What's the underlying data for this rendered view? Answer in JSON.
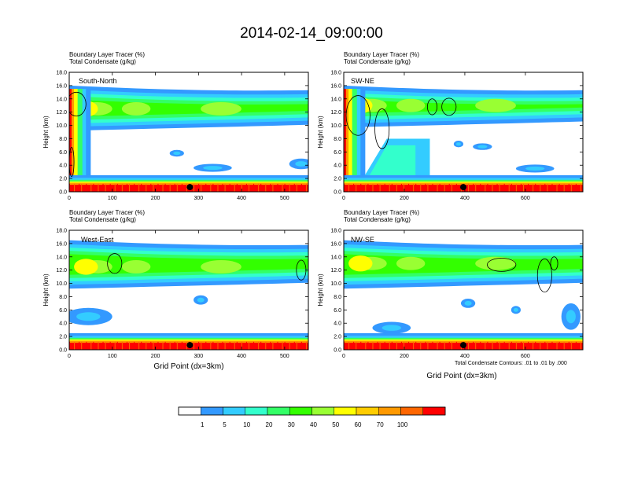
{
  "page": {
    "title": "2014-02-14_09:00:00",
    "contour_note": "Total Condensate Contours: .01 to .01 by .000",
    "colors": {
      "background": "#ffffff",
      "frame": "#000000"
    }
  },
  "colorbar": {
    "levels": [
      "1",
      "5",
      "10",
      "20",
      "30",
      "40",
      "50",
      "60",
      "70",
      "100"
    ],
    "colors": [
      "#ffffff",
      "#3399ff",
      "#33ccff",
      "#33ffcc",
      "#33ff66",
      "#33ff00",
      "#99ff33",
      "#ffff00",
      "#ffcc00",
      "#ff9900",
      "#ff6600",
      "#ff0000"
    ]
  },
  "chart_data": [
    {
      "type": "heatmap",
      "panel": "South-North",
      "title_lines": [
        "Boundary Layer Tracer   (%)",
        "Total Condensate   (g/kg)"
      ],
      "ylabel": "Height (km)",
      "xlabel": "",
      "xlim": [
        0,
        555
      ],
      "ylim": [
        0,
        18
      ],
      "xticks": [
        "0",
        "100",
        "200",
        "300",
        "400",
        "500"
      ],
      "yticks": [
        "0.0",
        "2.0",
        "4.0",
        "6.0",
        "8.0",
        "10.0",
        "12.0",
        "14.0",
        "16.0",
        "18.0"
      ],
      "marker_x": 280,
      "features": {
        "boundary_layer_top_km": 1.2,
        "upper_layer_km": [
          9.5,
          15.5
        ],
        "upper_core_km": 12.5
      }
    },
    {
      "type": "heatmap",
      "panel": "SW-NE",
      "title_lines": [
        "Boundary Layer Tracer   (%)",
        "Total Condensate   (g/kg)"
      ],
      "ylabel": "Height (km)",
      "xlabel": "",
      "xlim": [
        0,
        790
      ],
      "ylim": [
        0,
        18
      ],
      "xticks": [
        "0",
        "200",
        "400",
        "600"
      ],
      "yticks": [
        "0.0",
        "2.0",
        "4.0",
        "6.0",
        "8.0",
        "10.0",
        "12.0",
        "14.0",
        "16.0",
        "18.0"
      ],
      "marker_x": 395,
      "features": {
        "boundary_layer_top_km": 1.2,
        "upper_layer_km": [
          10,
          15.5
        ],
        "upper_core_km": 13
      }
    },
    {
      "type": "heatmap",
      "panel": "West-East",
      "title_lines": [
        "Boundary Layer Tracer   (%)",
        "Total Condensate   (g/kg)"
      ],
      "ylabel": "Height (km)",
      "xlabel": "Grid Point (dx=3km)",
      "xlim": [
        0,
        555
      ],
      "ylim": [
        0,
        18
      ],
      "xticks": [
        "0",
        "100",
        "200",
        "300",
        "400",
        "500"
      ],
      "yticks": [
        "0.0",
        "2.0",
        "4.0",
        "6.0",
        "8.0",
        "10.0",
        "12.0",
        "14.0",
        "16.0",
        "18.0"
      ],
      "marker_x": 280,
      "features": {
        "boundary_layer_top_km": 1.2,
        "upper_layer_km": [
          9.5,
          16
        ],
        "upper_core_km": 12.5
      }
    },
    {
      "type": "heatmap",
      "panel": "NW-SE",
      "title_lines": [
        "Boundary Layer Tracer   (%)",
        "Total Condensate   (g/kg)"
      ],
      "ylabel": "Height (km)",
      "xlabel": "Grid Point (dx=3km)",
      "xlim": [
        0,
        790
      ],
      "ylim": [
        0,
        18
      ],
      "xticks": [
        "0",
        "200",
        "400",
        "600"
      ],
      "yticks": [
        "0.0",
        "2.0",
        "4.0",
        "6.0",
        "8.0",
        "10.0",
        "12.0",
        "14.0",
        "16.0",
        "18.0"
      ],
      "marker_x": 395,
      "features": {
        "boundary_layer_top_km": 1.2,
        "upper_layer_km": [
          9.5,
          16
        ],
        "upper_core_km": 13
      }
    }
  ]
}
